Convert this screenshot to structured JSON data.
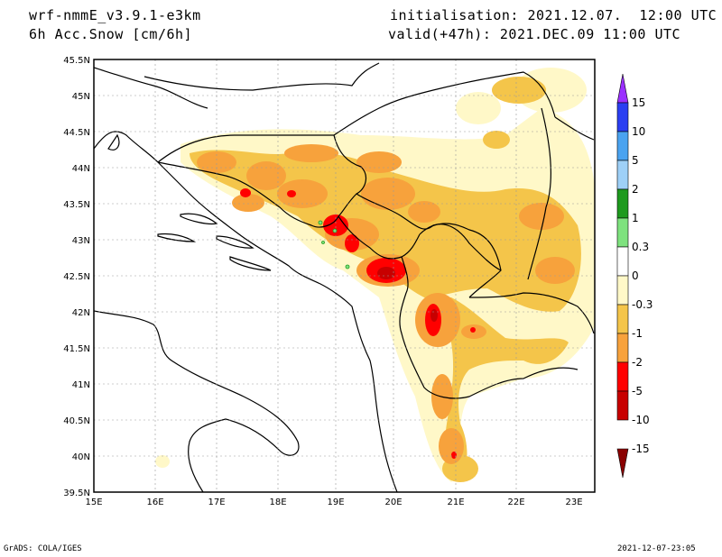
{
  "header": {
    "model": "wrf-nmmE_v3.9.1-e3km",
    "field": "6h Acc.Snow [cm/6h]",
    "init": "initialisation: 2021.12.07.  12:00 UTC",
    "valid": "valid(+47h): 2021.DEC.09 11:00 UTC"
  },
  "map": {
    "lon_ticks": [
      "15E",
      "16E",
      "17E",
      "18E",
      "19E",
      "20E",
      "21E",
      "22E",
      "23E"
    ],
    "lat_ticks": [
      "45.5N",
      "45N",
      "44.5N",
      "44N",
      "43.5N",
      "43N",
      "42.5N",
      "42N",
      "41.5N",
      "41N",
      "40.5N",
      "40N",
      "39.5N"
    ]
  },
  "colorbar": {
    "labels": [
      "15",
      "10",
      "5",
      "2",
      "1",
      "0.3",
      "0",
      "-0.3",
      "-1",
      "-2",
      "-5",
      "-10",
      "-15"
    ],
    "colors": [
      "#9b30ff",
      "#2b3ff2",
      "#4aa3f0",
      "#9ed0f7",
      "#1e9a1e",
      "#7ee27e",
      "#ffffff",
      "#fff8c8",
      "#f4c54a",
      "#f7a23c",
      "#ff0000",
      "#c80000",
      "#8a0000"
    ]
  },
  "footer": {
    "left": "GrADS: COLA/IGES",
    "right": "2021-12-07-23:05"
  }
}
